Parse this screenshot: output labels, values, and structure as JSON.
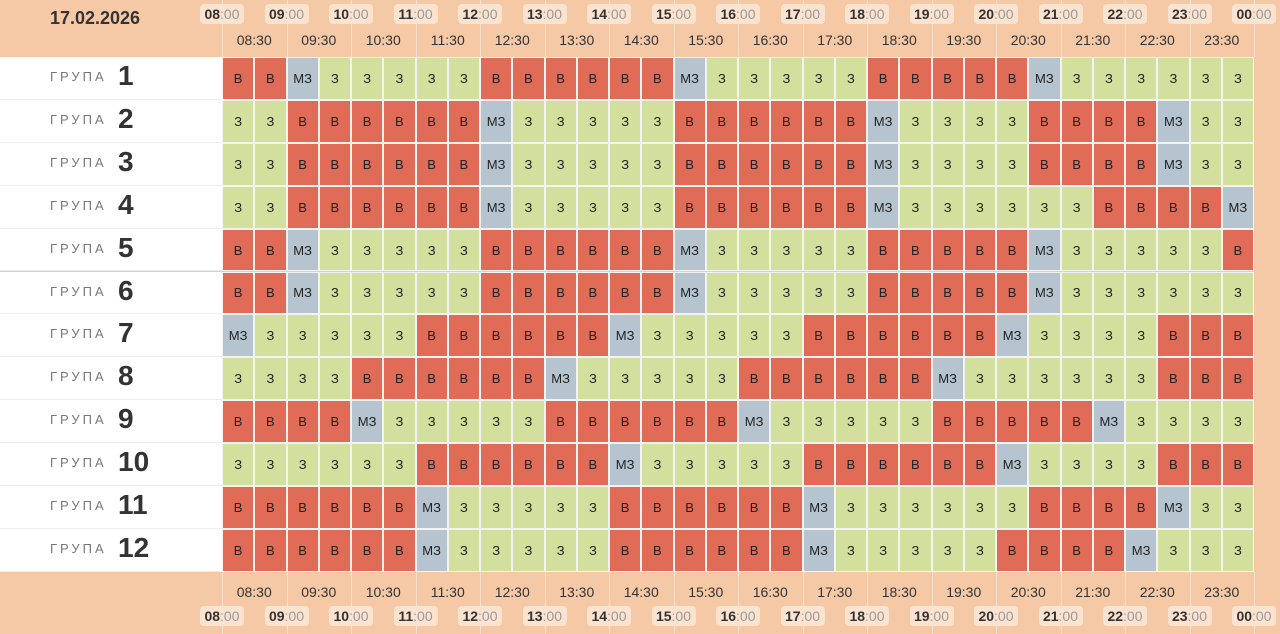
{
  "date": "17.02.2026",
  "hours": [
    "08",
    "09",
    "10",
    "11",
    "12",
    "13",
    "14",
    "15",
    "16",
    "17",
    "18",
    "19",
    "20",
    "21",
    "22",
    "23",
    "00"
  ],
  "minute_suffix": ":00",
  "half_hours": [
    "08:30",
    "09:30",
    "10:30",
    "11:30",
    "12:30",
    "13:30",
    "14:30",
    "15:30",
    "16:30",
    "17:30",
    "18:30",
    "19:30",
    "20:30",
    "21:30",
    "22:30",
    "23:30"
  ],
  "group_label": "ГРУПА",
  "cell_colors": {
    "В": "#e06b57",
    "З": "#d3df9c",
    "МЗ": "#b5c4cf"
  },
  "groups": [
    {
      "number": "1",
      "cells": [
        "В",
        "В",
        "МЗ",
        "З",
        "З",
        "З",
        "З",
        "З",
        "В",
        "В",
        "В",
        "В",
        "В",
        "В",
        "МЗ",
        "З",
        "З",
        "З",
        "З",
        "З",
        "В",
        "В",
        "В",
        "В",
        "В",
        "МЗ",
        "З",
        "З",
        "З",
        "З",
        "З",
        "З"
      ]
    },
    {
      "number": "2",
      "cells": [
        "З",
        "З",
        "В",
        "В",
        "В",
        "В",
        "В",
        "В",
        "МЗ",
        "З",
        "З",
        "З",
        "З",
        "З",
        "В",
        "В",
        "В",
        "В",
        "В",
        "В",
        "МЗ",
        "З",
        "З",
        "З",
        "З",
        "В",
        "В",
        "В",
        "В",
        "МЗ",
        "З",
        "З"
      ]
    },
    {
      "number": "3",
      "cells": [
        "З",
        "З",
        "В",
        "В",
        "В",
        "В",
        "В",
        "В",
        "МЗ",
        "З",
        "З",
        "З",
        "З",
        "З",
        "В",
        "В",
        "В",
        "В",
        "В",
        "В",
        "МЗ",
        "З",
        "З",
        "З",
        "З",
        "В",
        "В",
        "В",
        "В",
        "МЗ",
        "З",
        "З"
      ]
    },
    {
      "number": "4",
      "cells": [
        "З",
        "З",
        "В",
        "В",
        "В",
        "В",
        "В",
        "В",
        "МЗ",
        "З",
        "З",
        "З",
        "З",
        "З",
        "В",
        "В",
        "В",
        "В",
        "В",
        "В",
        "МЗ",
        "З",
        "З",
        "З",
        "З",
        "З",
        "З",
        "В",
        "В",
        "В",
        "В",
        "МЗ"
      ]
    },
    {
      "number": "5",
      "cells": [
        "В",
        "В",
        "МЗ",
        "З",
        "З",
        "З",
        "З",
        "З",
        "В",
        "В",
        "В",
        "В",
        "В",
        "В",
        "МЗ",
        "З",
        "З",
        "З",
        "З",
        "З",
        "В",
        "В",
        "В",
        "В",
        "В",
        "МЗ",
        "З",
        "З",
        "З",
        "З",
        "З",
        "В"
      ]
    },
    {
      "number": "6",
      "cells": [
        "В",
        "В",
        "МЗ",
        "З",
        "З",
        "З",
        "З",
        "З",
        "В",
        "В",
        "В",
        "В",
        "В",
        "В",
        "МЗ",
        "З",
        "З",
        "З",
        "З",
        "З",
        "В",
        "В",
        "В",
        "В",
        "В",
        "МЗ",
        "З",
        "З",
        "З",
        "З",
        "З",
        "З"
      ]
    },
    {
      "number": "7",
      "cells": [
        "МЗ",
        "З",
        "З",
        "З",
        "З",
        "З",
        "В",
        "В",
        "В",
        "В",
        "В",
        "В",
        "МЗ",
        "З",
        "З",
        "З",
        "З",
        "З",
        "В",
        "В",
        "В",
        "В",
        "В",
        "В",
        "МЗ",
        "З",
        "З",
        "З",
        "З",
        "В",
        "В",
        "В"
      ]
    },
    {
      "number": "8",
      "cells": [
        "З",
        "З",
        "З",
        "З",
        "В",
        "В",
        "В",
        "В",
        "В",
        "В",
        "МЗ",
        "З",
        "З",
        "З",
        "З",
        "З",
        "В",
        "В",
        "В",
        "В",
        "В",
        "В",
        "МЗ",
        "З",
        "З",
        "З",
        "З",
        "З",
        "З",
        "В",
        "В",
        "В"
      ]
    },
    {
      "number": "9",
      "cells": [
        "В",
        "В",
        "В",
        "В",
        "МЗ",
        "З",
        "З",
        "З",
        "З",
        "З",
        "В",
        "В",
        "В",
        "В",
        "В",
        "В",
        "МЗ",
        "З",
        "З",
        "З",
        "З",
        "З",
        "В",
        "В",
        "В",
        "В",
        "В",
        "МЗ",
        "З",
        "З",
        "З",
        "З"
      ]
    },
    {
      "number": "10",
      "cells": [
        "З",
        "З",
        "З",
        "З",
        "З",
        "З",
        "В",
        "В",
        "В",
        "В",
        "В",
        "В",
        "МЗ",
        "З",
        "З",
        "З",
        "З",
        "З",
        "В",
        "В",
        "В",
        "В",
        "В",
        "В",
        "МЗ",
        "З",
        "З",
        "З",
        "З",
        "В",
        "В",
        "В"
      ]
    },
    {
      "number": "11",
      "cells": [
        "В",
        "В",
        "В",
        "В",
        "В",
        "В",
        "МЗ",
        "З",
        "З",
        "З",
        "З",
        "З",
        "В",
        "В",
        "В",
        "В",
        "В",
        "В",
        "МЗ",
        "З",
        "З",
        "З",
        "З",
        "З",
        "З",
        "В",
        "В",
        "В",
        "В",
        "МЗ",
        "З",
        "З"
      ]
    },
    {
      "number": "12",
      "cells": [
        "В",
        "В",
        "В",
        "В",
        "В",
        "В",
        "МЗ",
        "З",
        "З",
        "З",
        "З",
        "З",
        "В",
        "В",
        "В",
        "В",
        "В",
        "В",
        "МЗ",
        "З",
        "З",
        "З",
        "З",
        "З",
        "В",
        "В",
        "В",
        "В",
        "МЗ",
        "З",
        "З",
        "З"
      ]
    }
  ]
}
